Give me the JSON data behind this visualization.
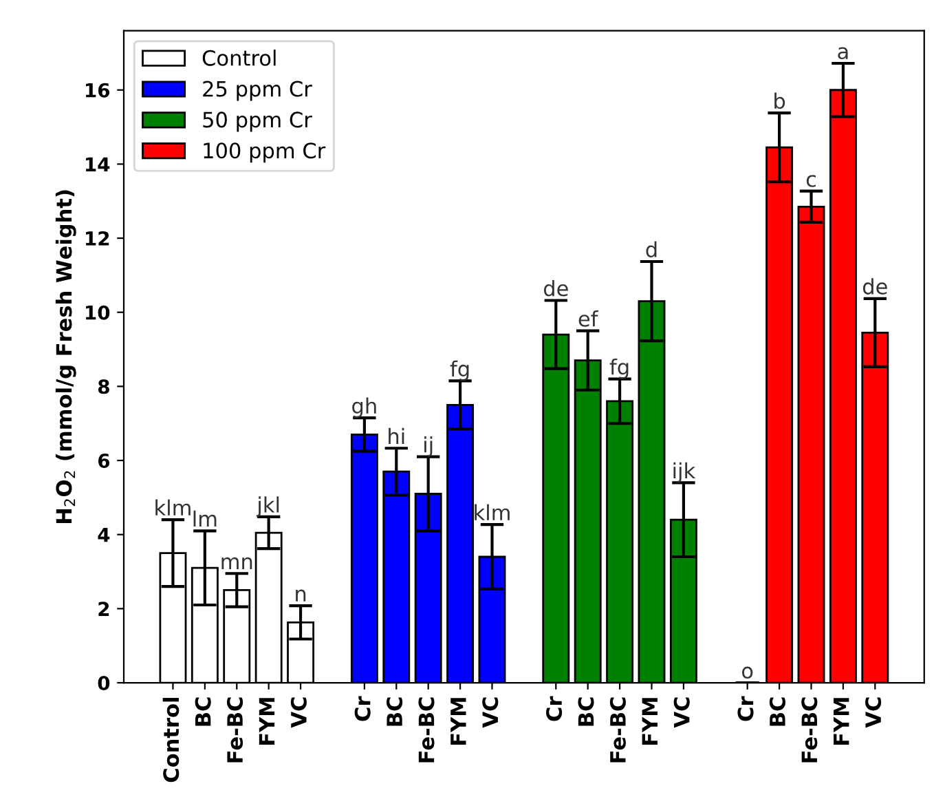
{
  "chart_data": {
    "type": "bar",
    "ylabel": "H$_{2}$O$_{2}$ (mmol/g Fresh Weight)",
    "categories": [
      "Control",
      "BC",
      "Fe-BC",
      "FYM",
      "VC",
      null,
      "Cr",
      "BC",
      "Fe-BC",
      "FYM",
      "VC",
      null,
      "Cr",
      "BC",
      "Fe-BC",
      "FYM",
      "VC",
      null,
      "Cr",
      "BC",
      "Fe-BC",
      "FYM",
      "VC"
    ],
    "series": [
      {
        "name": "Control",
        "color": "#ffffff",
        "values": [
          3.5,
          3.1,
          2.5,
          4.05,
          1.63,
          null,
          null,
          null,
          null,
          null,
          null,
          null,
          null,
          null,
          null,
          null,
          null,
          null,
          null,
          null,
          null,
          null,
          null
        ],
        "errors": [
          0.9,
          1.0,
          0.45,
          0.43,
          0.45,
          null,
          null,
          null,
          null,
          null,
          null,
          null,
          null,
          null,
          null,
          null,
          null,
          null,
          null,
          null,
          null,
          null,
          null
        ],
        "value_labels": [
          "klm",
          "lm",
          "mn",
          "jkl",
          "n",
          null,
          null,
          null,
          null,
          null,
          null,
          null,
          null,
          null,
          null,
          null,
          null,
          null,
          null,
          null,
          null,
          null,
          null
        ]
      },
      {
        "name": "25 ppm Cr",
        "color": "#0000ff",
        "values": [
          null,
          null,
          null,
          null,
          null,
          null,
          6.7,
          5.7,
          5.1,
          7.5,
          3.4,
          null,
          null,
          null,
          null,
          null,
          null,
          null,
          null,
          null,
          null,
          null,
          null
        ],
        "errors": [
          null,
          null,
          null,
          null,
          null,
          null,
          0.45,
          0.63,
          1.0,
          0.65,
          0.87,
          null,
          null,
          null,
          null,
          null,
          null,
          null,
          null,
          null,
          null,
          null,
          null
        ],
        "value_labels": [
          null,
          null,
          null,
          null,
          null,
          null,
          "gh",
          "hi",
          "ij",
          "fg",
          "klm",
          null,
          null,
          null,
          null,
          null,
          null,
          null,
          null,
          null,
          null,
          null,
          null
        ]
      },
      {
        "name": "50 ppm Cr",
        "color": "#008000",
        "values": [
          null,
          null,
          null,
          null,
          null,
          null,
          null,
          null,
          null,
          null,
          null,
          null,
          9.4,
          8.7,
          7.6,
          10.3,
          4.4,
          null,
          null,
          null,
          null,
          null,
          null
        ],
        "errors": [
          null,
          null,
          null,
          null,
          null,
          null,
          null,
          null,
          null,
          null,
          null,
          null,
          0.92,
          0.8,
          0.6,
          1.07,
          1.0,
          null,
          null,
          null,
          null,
          null,
          null
        ],
        "value_labels": [
          null,
          null,
          null,
          null,
          null,
          null,
          null,
          null,
          null,
          null,
          null,
          null,
          "de",
          "ef",
          "fg",
          "d",
          "ijk",
          null,
          null,
          null,
          null,
          null,
          null
        ]
      },
      {
        "name": "100 ppm Cr",
        "color": "#ff0000",
        "values": [
          null,
          null,
          null,
          null,
          null,
          null,
          null,
          null,
          null,
          null,
          null,
          null,
          null,
          null,
          null,
          null,
          null,
          null,
          0,
          14.45,
          12.85,
          16.0,
          9.45
        ],
        "errors": [
          null,
          null,
          null,
          null,
          null,
          null,
          null,
          null,
          null,
          null,
          null,
          null,
          null,
          null,
          null,
          null,
          null,
          null,
          0,
          0.93,
          0.42,
          0.72,
          0.92
        ],
        "value_labels": [
          null,
          null,
          null,
          null,
          null,
          null,
          null,
          null,
          null,
          null,
          null,
          null,
          null,
          null,
          null,
          null,
          null,
          null,
          "o",
          "b",
          "c",
          "a",
          "de"
        ]
      }
    ],
    "ylim": [
      0,
      17.6
    ],
    "yticks": [
      0,
      2,
      4,
      6,
      8,
      10,
      12,
      14,
      16
    ],
    "grid": false,
    "legend": "top left"
  }
}
